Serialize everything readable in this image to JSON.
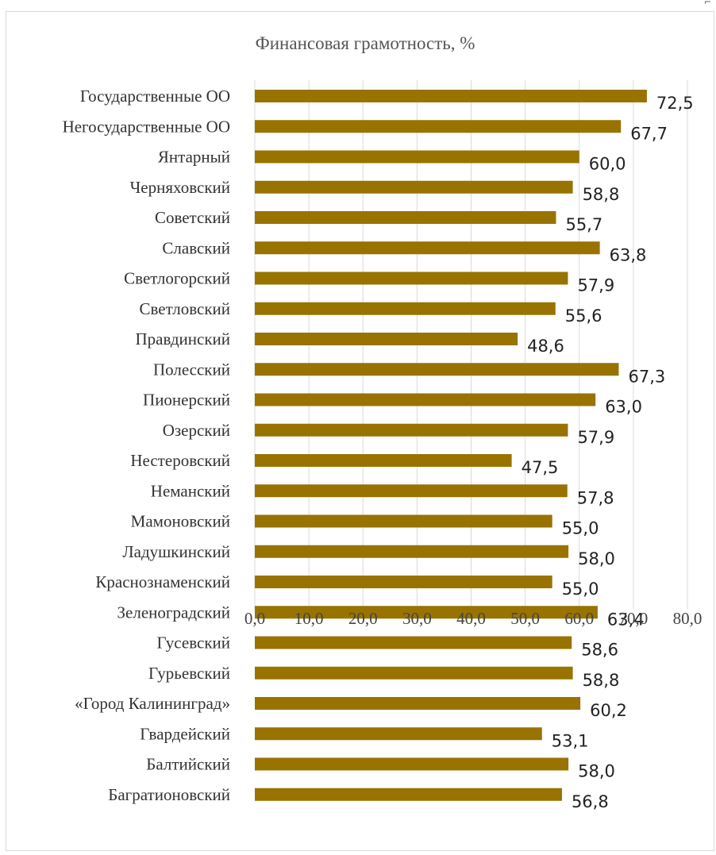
{
  "chart_data": {
    "type": "bar",
    "orientation": "horizontal",
    "title": "Финансовая грамотность, %",
    "xlabel": "",
    "ylabel": "",
    "xlim": [
      0,
      80
    ],
    "x_ticks": [
      "0,0",
      "10,0",
      "20,0",
      "30,0",
      "40,0",
      "50,0",
      "60,0",
      "70,0",
      "80,0"
    ],
    "grid": "vertical",
    "legend": "none",
    "bar_color": "#987300",
    "categories": [
      "Государственные ОО",
      "Негосударственные ОО",
      "Янтарный",
      "Черняховский",
      "Советский",
      "Славский",
      "Светлогорский",
      "Светловский",
      "Правдинский",
      "Полесский",
      "Пионерский",
      "Озерский",
      "Нестеровский",
      "Неманский",
      "Мамоновский",
      "Ладушкинский",
      "Краснознаменский",
      "Зеленоградский",
      "Гусевский",
      "Гурьевский",
      "«Город Калининград»",
      "Гвардейский",
      "Балтийский",
      "Багратионовский"
    ],
    "values": [
      72.5,
      67.7,
      60.0,
      58.8,
      55.7,
      63.8,
      57.9,
      55.6,
      48.6,
      67.3,
      63.0,
      57.9,
      47.5,
      57.8,
      55.0,
      58.0,
      55.0,
      63.4,
      58.6,
      58.8,
      60.2,
      53.1,
      58.0,
      56.8
    ],
    "data_labels": [
      "72,5",
      "67,7",
      "60,0",
      "58,8",
      "55,7",
      "63,8",
      "57,9",
      "55,6",
      "48,6",
      "67,3",
      "63,0",
      "57,9",
      "47,5",
      "57,8",
      "55,0",
      "58,0",
      "55,0",
      "63,4",
      "58,6",
      "58,8",
      "60,2",
      "53,1",
      "58,0",
      "56,8"
    ]
  }
}
